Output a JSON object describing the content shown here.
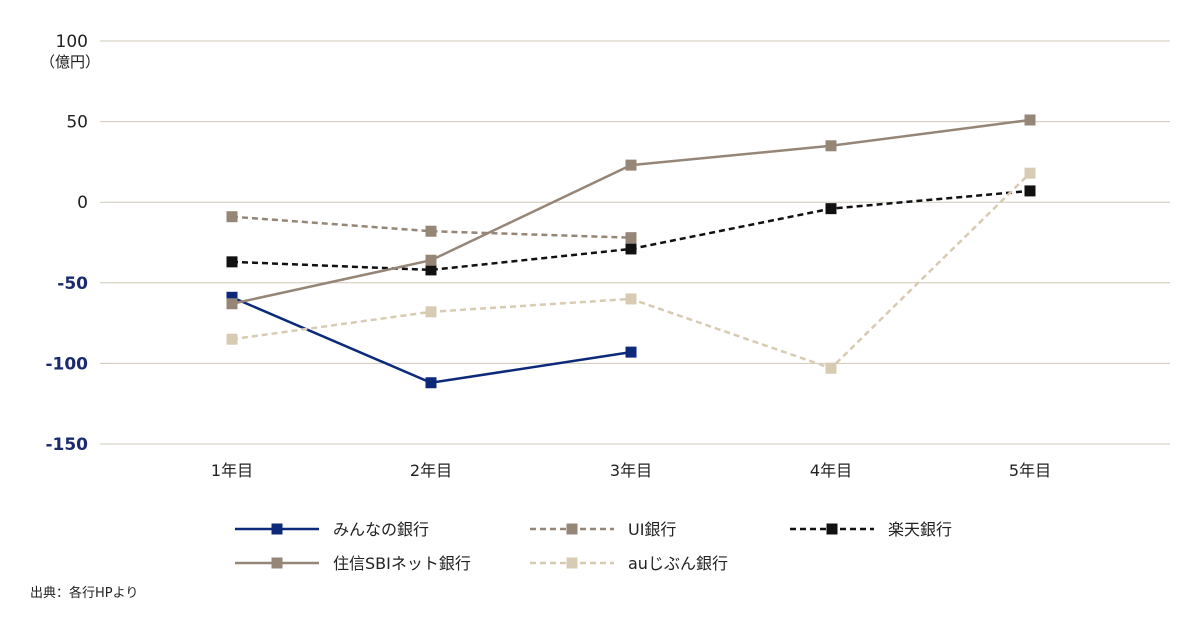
{
  "chart_data": {
    "type": "line",
    "categories": [
      "1年目",
      "2年目",
      "3年目",
      "4年目",
      "5年目"
    ],
    "ylim": [
      -150,
      100
    ],
    "yticks": [
      "100",
      "50",
      "0",
      "-50",
      "-100",
      "-150"
    ],
    "y_unit_label": "（億円）",
    "grid": true,
    "legend_position": "bottom",
    "series": [
      {
        "name": "みんなの銀行",
        "values": [
          -59,
          -112,
          -93,
          null,
          null
        ],
        "color": "#0d2a7a",
        "dash": "solid"
      },
      {
        "name": "UI銀行",
        "values": [
          -9,
          -18,
          -22,
          null,
          null
        ],
        "color": "#968678",
        "dash": "dashed"
      },
      {
        "name": "楽天銀行",
        "values": [
          -37,
          -42,
          -29,
          -4,
          7
        ],
        "color": "#111111",
        "dash": "dashed"
      },
      {
        "name": "住信SBIネット銀行",
        "values": [
          -63,
          -36,
          23,
          35,
          51
        ],
        "color": "#968678",
        "dash": "solid"
      },
      {
        "name": "auじぶん銀行",
        "values": [
          -85,
          -68,
          -60,
          -103,
          18
        ],
        "color": "#d8cbb4",
        "dash": "dashed"
      }
    ]
  },
  "colors": {
    "positive_tick": "#222222",
    "negative_tick": "#1a2a6c",
    "grid": "#cfc8b8"
  },
  "source_note": "出典：各行HPより"
}
